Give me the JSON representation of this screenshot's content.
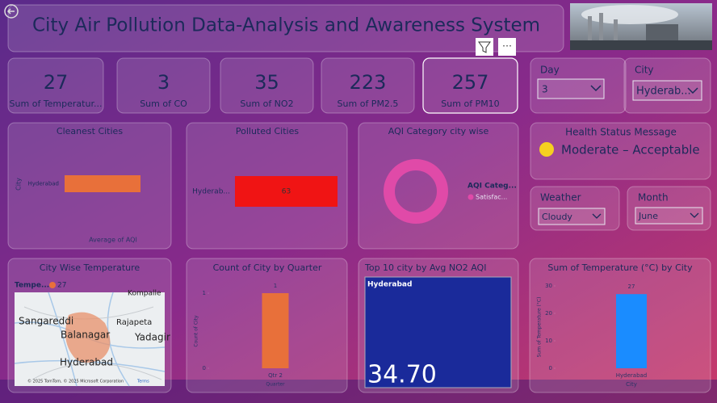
{
  "header": {
    "title": "City Air Pollution Data-Analysis and Awareness System"
  },
  "kpis": [
    {
      "value": 27,
      "label": "Sum of Temperatur..."
    },
    {
      "value": 3,
      "label": "Sum of CO"
    },
    {
      "value": 35,
      "label": "Sum of NO2"
    },
    {
      "value": 223,
      "label": "Sum of PM2.5"
    },
    {
      "value": 257,
      "label": "Sum of PM10"
    }
  ],
  "slicers": {
    "day": {
      "label": "Day",
      "value": "3"
    },
    "city": {
      "label": "City",
      "value": "Hyderab..."
    },
    "weather": {
      "label": "Weather",
      "value": "Cloudy"
    },
    "month": {
      "label": "Month",
      "value": "June"
    }
  },
  "health": {
    "title": "Health Status Message",
    "message": "Moderate – Acceptable"
  },
  "cleanest": {
    "type": "bar",
    "title": "Cleanest Cities",
    "y_label": "City",
    "x_label": "Average of AQI",
    "categories": [
      "Hyderabad"
    ],
    "values": [
      63
    ],
    "color": "#e8703a"
  },
  "polluted": {
    "type": "bar",
    "title": "Polluted Cities",
    "categories": [
      "Hyderab..."
    ],
    "values": [
      63
    ],
    "color": "#f01414"
  },
  "aqi_category": {
    "type": "pie",
    "title": "AQI Category city wise",
    "legend_title": "AQI Categ...",
    "categories": [
      "Satisfac..."
    ],
    "values": [
      1
    ],
    "colors": [
      "#e04aa8"
    ]
  },
  "map": {
    "title": "City Wise Temperature",
    "legend_title": "Tempe...",
    "legend_items": [
      "27"
    ],
    "places": [
      "Kompalle",
      "Sangareddi",
      "Balanagar",
      "Rajapeta",
      "Yadagir",
      "Hyderabad"
    ],
    "attribution": "© 2025 TomTom, © 2025 Microsoft Corporation",
    "terms": "Terms"
  },
  "quarter": {
    "type": "bar",
    "title": "Count of City by Quarter",
    "y_label": "Count of City",
    "x_label": "Quarter",
    "categories": [
      "Qtr 2"
    ],
    "values": [
      1
    ],
    "ylim": [
      0,
      1
    ],
    "yticks": [
      0,
      1
    ],
    "color": "#e8703a"
  },
  "no2": {
    "type": "treemap",
    "title": "Top 10 city by Avg NO2 AQI",
    "categories": [
      "Hyderabad"
    ],
    "values": [
      34.7
    ],
    "value_labels": [
      "34.70"
    ],
    "color": "#1a2a9a"
  },
  "temperature": {
    "type": "bar",
    "title": "Sum of Temperature (°C) by City",
    "y_label": "Sum of Temperature (°C)",
    "x_label": "City",
    "categories": [
      "Hyderabad"
    ],
    "values": [
      27
    ],
    "ylim": [
      0,
      30
    ],
    "yticks": [
      0,
      10,
      20,
      30
    ],
    "color": "#1a8cff"
  }
}
